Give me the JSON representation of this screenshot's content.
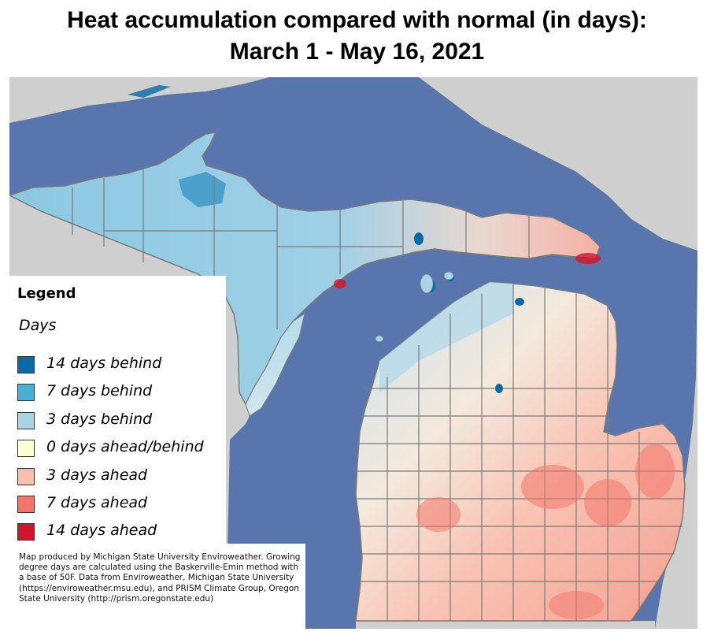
{
  "title": {
    "line1": "Heat accumulation compared with normal (in days):",
    "line2": "March 1 - May 16, 2021"
  },
  "legend": {
    "heading": "Legend",
    "subheading": "Days",
    "items": [
      {
        "label": "14 days behind",
        "color": "#0a6aa5"
      },
      {
        "label": "7 days behind",
        "color": "#4daed4"
      },
      {
        "label": "3 days behind",
        "color": "#a9d4e8"
      },
      {
        "label": "0 days ahead/behind",
        "color": "#ffffd2"
      },
      {
        "label": "3 days ahead",
        "color": "#f9bfae"
      },
      {
        "label": "7 days ahead",
        "color": "#f2766c"
      },
      {
        "label": "14 days ahead",
        "color": "#d2152c"
      }
    ]
  },
  "credit": "Map produced by Michigan State University Enviroweather. Growing degree days are calculated using the Baskerville-Emin method with a base of 50F.  Data from Enviroweather, Michigan State University (https://enviroweather.msu.edu), and PRISM Climate Group, Oregon State University (http://prism.oregonstate.edu)",
  "colors": {
    "water": "#5975ad",
    "outside_land": "#cfcfcf",
    "county_line": "#7a7a7a"
  }
}
